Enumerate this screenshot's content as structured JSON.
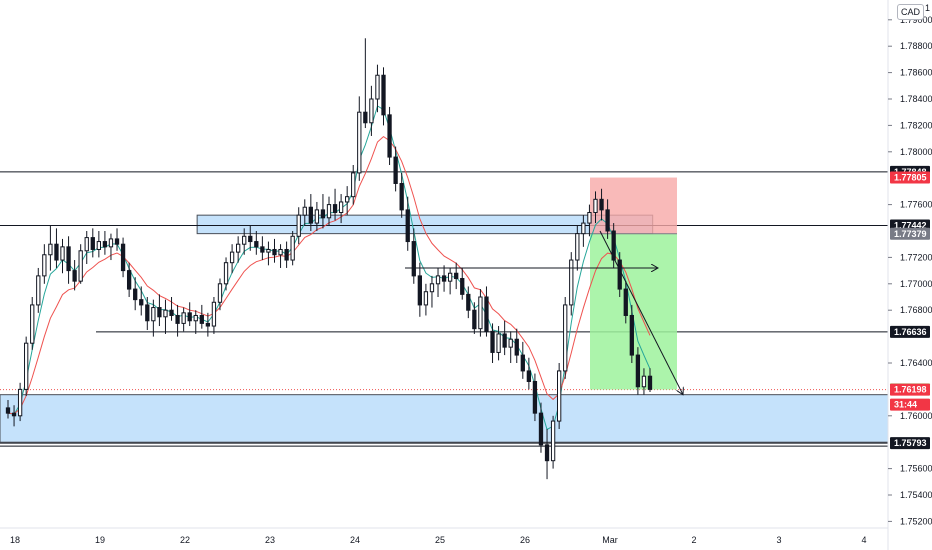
{
  "header": {
    "currency_button": "CAD",
    "currency_suffix": "ˀ"
  },
  "chart_data": {
    "type": "candlestick",
    "y_axis": {
      "ylim": [
        1.7515,
        1.7915
      ],
      "tick_labels": [
        "1.79000",
        "1.78800",
        "1.78600",
        "1.78400",
        "1.78200",
        "1.78000",
        "1.77600",
        "1.77200",
        "1.77000",
        "1.76800",
        "1.76400",
        "1.76000",
        "1.75600",
        "1.75400",
        "1.75200"
      ],
      "tick_values": [
        1.79,
        1.788,
        1.786,
        1.784,
        1.782,
        1.78,
        1.776,
        1.772,
        1.77,
        1.768,
        1.764,
        1.76,
        1.756,
        1.754,
        1.752
      ],
      "top_partial_label": "1"
    },
    "x_axis": {
      "tick_labels": [
        "18",
        "19",
        "22",
        "23",
        "24",
        "25",
        "26",
        "Mar",
        "2",
        "3",
        "4"
      ]
    },
    "price_badges": [
      {
        "label": "1.77848",
        "value": 1.77848,
        "style": "dark"
      },
      {
        "label": "1.77805",
        "value": 1.77805,
        "style": "red"
      },
      {
        "label": "1.77442",
        "value": 1.77442,
        "style": "dark"
      },
      {
        "label": "1.77379",
        "value": 1.77379,
        "style": "gray"
      },
      {
        "label": "1.76636",
        "value": 1.76636,
        "style": "dark"
      },
      {
        "label": "1.76199",
        "value": 1.76199,
        "style": "green"
      },
      {
        "label": "1.76198",
        "value": 1.76198,
        "style": "red"
      },
      {
        "label": "31:44",
        "value": 1.76085,
        "style": "red"
      },
      {
        "label": "1.75793",
        "value": 1.75793,
        "style": "dark"
      }
    ],
    "horizontal_levels": [
      1.77848,
      1.77442,
      1.76636,
      1.75793
    ],
    "zones": [
      {
        "name": "resistance-zone",
        "from_x": 0.222,
        "to_x": 0.735,
        "y_low": 1.7738,
        "y_high": 1.7752
      },
      {
        "name": "support-zone",
        "from_x": 0.0,
        "to_x": 1.0,
        "y_low": 1.758,
        "y_high": 1.7616
      }
    ],
    "position": {
      "entry": 1.77379,
      "stop": 1.77805,
      "target": 1.76199
    },
    "last_price": 1.76198,
    "candles": [
      [
        1.7606,
        1.7612,
        1.7598,
        1.7602
      ],
      [
        1.7602,
        1.7608,
        1.7592,
        1.76
      ],
      [
        1.76,
        1.7625,
        1.7596,
        1.762
      ],
      [
        1.762,
        1.766,
        1.7615,
        1.7655
      ],
      [
        1.7655,
        1.769,
        1.765,
        1.7684
      ],
      [
        1.7684,
        1.7712,
        1.7678,
        1.7706
      ],
      [
        1.7706,
        1.773,
        1.77,
        1.7722
      ],
      [
        1.7722,
        1.7744,
        1.771,
        1.773
      ],
      [
        1.773,
        1.7742,
        1.7712,
        1.7718
      ],
      [
        1.7718,
        1.7734,
        1.7708,
        1.7728
      ],
      [
        1.7728,
        1.7736,
        1.77,
        1.771
      ],
      [
        1.771,
        1.7718,
        1.7695,
        1.7702
      ],
      [
        1.7702,
        1.773,
        1.77,
        1.7725
      ],
      [
        1.7725,
        1.774,
        1.7715,
        1.7735
      ],
      [
        1.7735,
        1.7742,
        1.772,
        1.7726
      ],
      [
        1.7726,
        1.774,
        1.772,
        1.7732
      ],
      [
        1.7732,
        1.774,
        1.7722,
        1.7728
      ],
      [
        1.7728,
        1.7738,
        1.7718,
        1.7734
      ],
      [
        1.7734,
        1.7742,
        1.7725,
        1.773
      ],
      [
        1.773,
        1.7735,
        1.7705,
        1.771
      ],
      [
        1.771,
        1.7716,
        1.769,
        1.7696
      ],
      [
        1.7696,
        1.7705,
        1.768,
        1.7688
      ],
      [
        1.7688,
        1.7698,
        1.7676,
        1.7684
      ],
      [
        1.7684,
        1.769,
        1.7665,
        1.7672
      ],
      [
        1.7672,
        1.7688,
        1.766,
        1.7682
      ],
      [
        1.7682,
        1.7692,
        1.7668,
        1.7675
      ],
      [
        1.7675,
        1.7688,
        1.7662,
        1.768
      ],
      [
        1.768,
        1.769,
        1.7672,
        1.7676
      ],
      [
        1.7676,
        1.7684,
        1.766,
        1.767
      ],
      [
        1.767,
        1.7682,
        1.7664,
        1.7678
      ],
      [
        1.7678,
        1.7686,
        1.7668,
        1.7672
      ],
      [
        1.7672,
        1.768,
        1.7662,
        1.7676
      ],
      [
        1.7676,
        1.7684,
        1.7666,
        1.767
      ],
      [
        1.767,
        1.7678,
        1.766,
        1.7668
      ],
      [
        1.7668,
        1.769,
        1.7662,
        1.7686
      ],
      [
        1.7686,
        1.7704,
        1.768,
        1.77
      ],
      [
        1.77,
        1.772,
        1.7695,
        1.7716
      ],
      [
        1.7716,
        1.773,
        1.7708,
        1.7724
      ],
      [
        1.7724,
        1.7736,
        1.7716,
        1.773
      ],
      [
        1.773,
        1.7742,
        1.7722,
        1.7736
      ],
      [
        1.7736,
        1.7744,
        1.7725,
        1.7732
      ],
      [
        1.7732,
        1.774,
        1.7722,
        1.7728
      ],
      [
        1.7728,
        1.7736,
        1.7718,
        1.7724
      ],
      [
        1.7724,
        1.7732,
        1.7714,
        1.7726
      ],
      [
        1.7726,
        1.7734,
        1.7716,
        1.7722
      ],
      [
        1.7722,
        1.773,
        1.7712,
        1.7726
      ],
      [
        1.7726,
        1.7732,
        1.7712,
        1.7718
      ],
      [
        1.7718,
        1.774,
        1.7714,
        1.7736
      ],
      [
        1.7736,
        1.7758,
        1.773,
        1.7752
      ],
      [
        1.7752,
        1.7764,
        1.7744,
        1.7758
      ],
      [
        1.7758,
        1.7768,
        1.774,
        1.7746
      ],
      [
        1.7746,
        1.7762,
        1.774,
        1.7756
      ],
      [
        1.7756,
        1.7768,
        1.7742,
        1.775
      ],
      [
        1.775,
        1.7766,
        1.7744,
        1.776
      ],
      [
        1.776,
        1.7772,
        1.7748,
        1.7754
      ],
      [
        1.7754,
        1.7768,
        1.7746,
        1.7762
      ],
      [
        1.7762,
        1.7774,
        1.7752,
        1.7766
      ],
      [
        1.7766,
        1.779,
        1.776,
        1.7784
      ],
      [
        1.7784,
        1.7842,
        1.7778,
        1.783
      ],
      [
        1.783,
        1.7886,
        1.7818,
        1.7822
      ],
      [
        1.7822,
        1.785,
        1.7812,
        1.784
      ],
      [
        1.784,
        1.7866,
        1.783,
        1.7858
      ],
      [
        1.7858,
        1.7864,
        1.782,
        1.7828
      ],
      [
        1.7828,
        1.7834,
        1.779,
        1.7796
      ],
      [
        1.7796,
        1.7804,
        1.777,
        1.7776
      ],
      [
        1.7776,
        1.7784,
        1.775,
        1.7756
      ],
      [
        1.7756,
        1.7766,
        1.7725,
        1.7732
      ],
      [
        1.7732,
        1.7742,
        1.77,
        1.7706
      ],
      [
        1.7706,
        1.7716,
        1.7675,
        1.7684
      ],
      [
        1.7684,
        1.77,
        1.7676,
        1.7694
      ],
      [
        1.7694,
        1.7706,
        1.7682,
        1.77
      ],
      [
        1.77,
        1.7712,
        1.769,
        1.7706
      ],
      [
        1.7706,
        1.7714,
        1.7694,
        1.7702
      ],
      [
        1.7702,
        1.7712,
        1.7692,
        1.7708
      ],
      [
        1.7708,
        1.7716,
        1.7696,
        1.7704
      ],
      [
        1.7704,
        1.7712,
        1.7688,
        1.7692
      ],
      [
        1.7692,
        1.7698,
        1.7674,
        1.768
      ],
      [
        1.768,
        1.7686,
        1.7662,
        1.7666
      ],
      [
        1.7666,
        1.7696,
        1.766,
        1.769
      ],
      [
        1.769,
        1.7698,
        1.766,
        1.7664
      ],
      [
        1.7664,
        1.767,
        1.764,
        1.7648
      ],
      [
        1.7648,
        1.7668,
        1.7642,
        1.7662
      ],
      [
        1.7662,
        1.7672,
        1.7646,
        1.7652
      ],
      [
        1.7652,
        1.7664,
        1.764,
        1.7658
      ],
      [
        1.7658,
        1.7666,
        1.764,
        1.7646
      ],
      [
        1.7646,
        1.7656,
        1.7628,
        1.7634
      ],
      [
        1.7634,
        1.7644,
        1.762,
        1.7626
      ],
      [
        1.7626,
        1.7632,
        1.7596,
        1.7602
      ],
      [
        1.7602,
        1.761,
        1.7572,
        1.7578
      ],
      [
        1.7578,
        1.759,
        1.7552,
        1.7566
      ],
      [
        1.7566,
        1.76,
        1.756,
        1.7596
      ],
      [
        1.7596,
        1.764,
        1.759,
        1.7634
      ],
      [
        1.7634,
        1.769,
        1.7628,
        1.7684
      ],
      [
        1.7684,
        1.7724,
        1.7676,
        1.7718
      ],
      [
        1.7718,
        1.7744,
        1.771,
        1.7738
      ],
      [
        1.7738,
        1.7752,
        1.7728,
        1.7746
      ],
      [
        1.7746,
        1.776,
        1.7736,
        1.7754
      ],
      [
        1.7754,
        1.777,
        1.7746,
        1.7764
      ],
      [
        1.7764,
        1.7772,
        1.7748,
        1.7756
      ],
      [
        1.7756,
        1.7764,
        1.7734,
        1.774
      ],
      [
        1.774,
        1.7746,
        1.7712,
        1.7718
      ],
      [
        1.7718,
        1.7724,
        1.769,
        1.7696
      ],
      [
        1.7696,
        1.7702,
        1.767,
        1.7676
      ],
      [
        1.7676,
        1.7684,
        1.764,
        1.7646
      ],
      [
        1.7646,
        1.7652,
        1.7616,
        1.7622
      ],
      [
        1.7622,
        1.7636,
        1.7616,
        1.763
      ],
      [
        1.763,
        1.7636,
        1.7618,
        1.762
      ]
    ],
    "ema_fast_color": "#26a69a",
    "ema_slow_color": "#ef5350"
  },
  "colors": {
    "bull": "#131722",
    "bear": "#131722",
    "zone_fill": "#bbdefb",
    "zone_stroke": "#2a2e39",
    "stop_fill": "#f7a9a7",
    "target_fill": "#9ef29c",
    "last_price_line": "#ef5350"
  }
}
